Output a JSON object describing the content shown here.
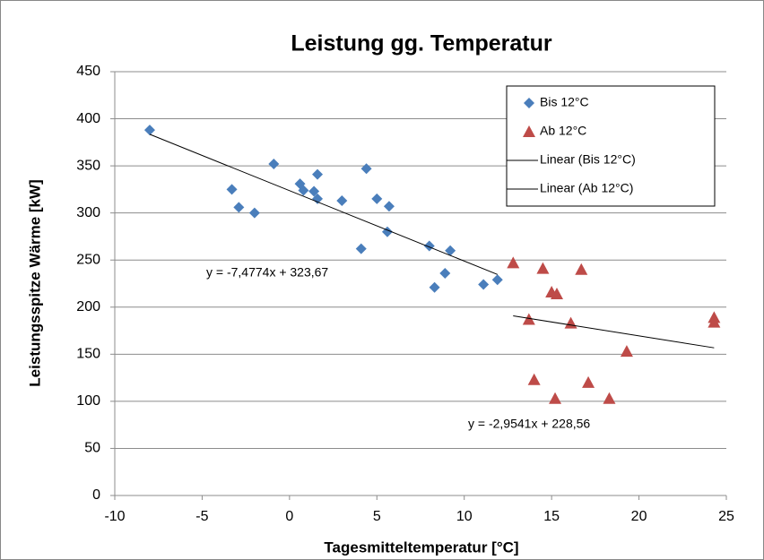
{
  "chart_data": {
    "type": "scatter",
    "title": "Leistung gg. Temperatur",
    "xlabel": "Tagesmitteltemperatur [°C]",
    "ylabel": "Leistungsspitze Wärme [kW]",
    "xlim": [
      -10,
      25
    ],
    "xticks": [
      -10,
      -5,
      0,
      5,
      10,
      15,
      20,
      25
    ],
    "ylim": [
      0,
      450
    ],
    "yticks": [
      0,
      50,
      100,
      150,
      200,
      250,
      300,
      350,
      400,
      450
    ],
    "grid": true,
    "legend": "upper right",
    "series": [
      {
        "name": "Bis 12°C",
        "color": "#4a7ebb",
        "marker": "diamond",
        "x": [
          -8,
          -3.3,
          -2.9,
          -2,
          -0.9,
          0.6,
          0.8,
          1.4,
          1.6,
          1.6,
          3.0,
          4.1,
          4.4,
          5.0,
          5.6,
          5.7,
          8.0,
          8.3,
          8.9,
          9.2,
          11.1,
          11.9
        ],
        "values": [
          388,
          325,
          306,
          300,
          352,
          331,
          324,
          323,
          341,
          315,
          313,
          262,
          347,
          315,
          280,
          307,
          265,
          221,
          236,
          260,
          224,
          229
        ]
      },
      {
        "name": "Ab 12°C",
        "color": "#be4b48",
        "marker": "triangle",
        "x": [
          12.8,
          14.5,
          16.7,
          15.0,
          15.3,
          13.7,
          16.1,
          24.3,
          24.3,
          19.3,
          14.0,
          17.1,
          15.2,
          18.3
        ],
        "values": [
          247,
          241,
          240,
          216,
          214,
          187,
          183,
          189,
          184,
          153,
          123,
          120,
          103,
          103
        ]
      },
      {
        "name": "Linear (Bis 12°C)",
        "color": "#000000",
        "marker": "line",
        "x": [
          -8,
          11.9
        ],
        "values": [
          383.5,
          234.7
        ]
      },
      {
        "name": "Linear (Ab 12°C)",
        "color": "#000000",
        "marker": "line",
        "x": [
          12.8,
          24.3
        ],
        "values": [
          190.7,
          156.8
        ]
      }
    ],
    "annotations": [
      "y = -7,4774x + 323,67",
      "y = -2,9541x + 228,56"
    ]
  }
}
